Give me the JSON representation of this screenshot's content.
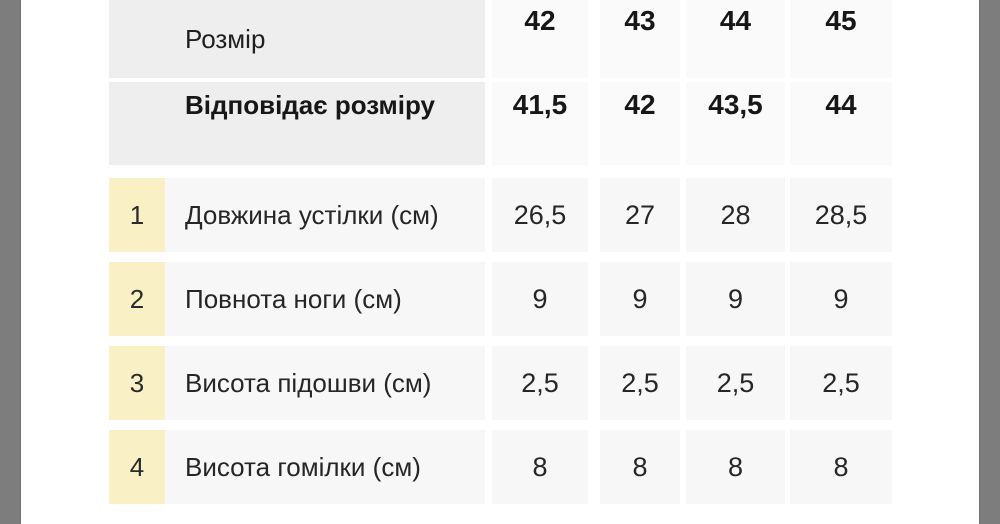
{
  "page": {
    "background": "#ffffff",
    "gutter_color": "#7d7d7d"
  },
  "table": {
    "colors": {
      "header_label_bg": "#eeeeee",
      "header_value_bg": "#fafafa",
      "body_cell_bg": "#f7f7f7",
      "row_number_bg": "#faf0c6",
      "text": "#1f1f1f"
    },
    "header_rows": [
      {
        "label": "Розмір",
        "values": [
          "42",
          "43",
          "44",
          "45"
        ]
      },
      {
        "label": "Відповідає розміру",
        "values": [
          "41,5",
          "42",
          "43,5",
          "44"
        ]
      }
    ],
    "body_rows": [
      {
        "num": "1",
        "label": "Довжина устілки (см)",
        "values": [
          "26,5",
          "27",
          "28",
          "28,5"
        ]
      },
      {
        "num": "2",
        "label": "Повнота ноги (см)",
        "values": [
          "9",
          "9",
          "9",
          "9"
        ]
      },
      {
        "num": "3",
        "label": "Висота підошви (см)",
        "values": [
          "2,5",
          "2,5",
          "2,5",
          "2,5"
        ]
      },
      {
        "num": "4",
        "label": "Висота гомілки (см)",
        "values": [
          "8",
          "8",
          "8",
          "8"
        ]
      }
    ]
  }
}
